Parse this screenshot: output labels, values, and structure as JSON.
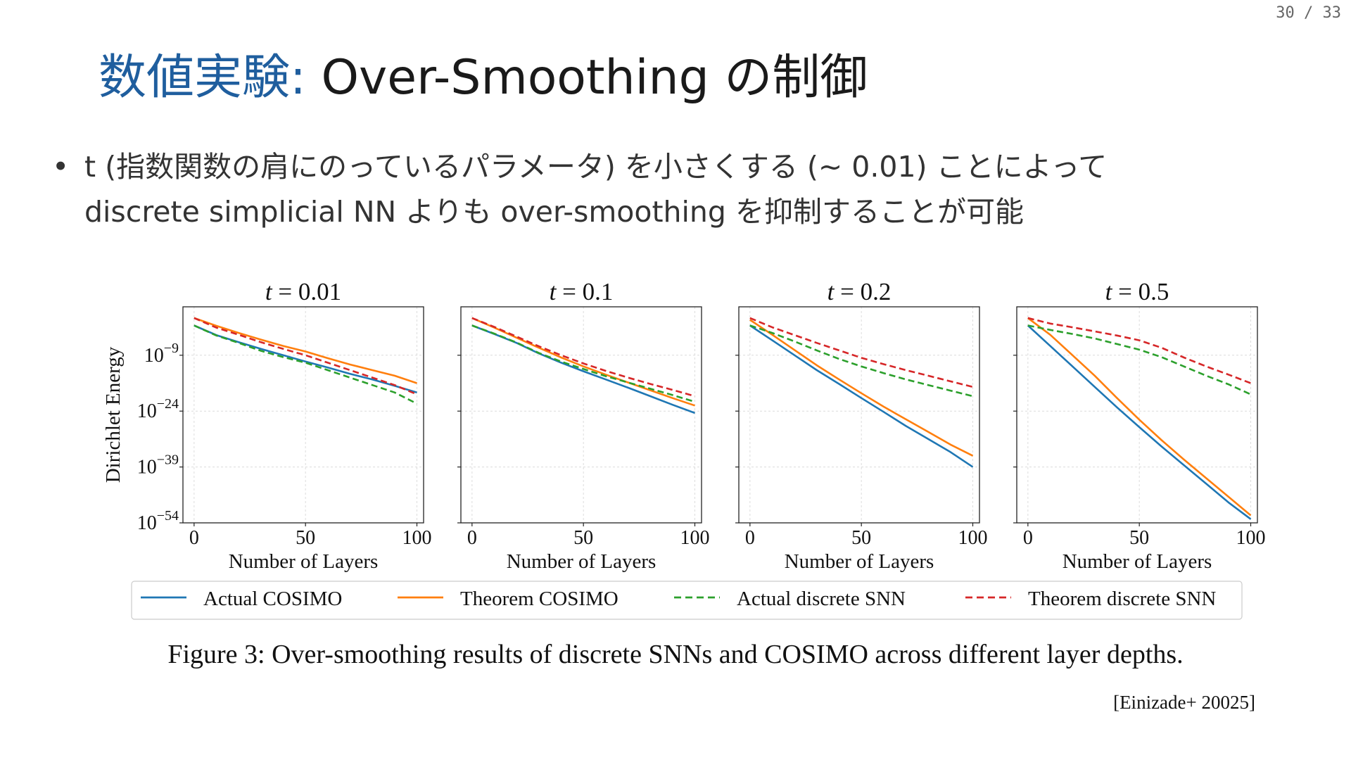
{
  "page": {
    "current": "30",
    "total": "33",
    "separator": "/"
  },
  "title": {
    "accent": "数値実験:",
    "main": " Over-Smoothing の制御"
  },
  "bullet": {
    "marker": "•",
    "line1": "t (指数関数の肩にのっているパラメータ) を小さくする (∼ 0.01) ことによって",
    "line2": "discrete simplicial NN よりも over-smoothing を抑制することが可能"
  },
  "caption": "Figure 3: Over-smoothing results of discrete SNNs and COSIMO across different layer depths.",
  "citation": "[Einizade+ 20025]",
  "colors": {
    "actual_cosimo": "#1f77b4",
    "theorem_cosimo": "#ff7f0e",
    "actual_snn": "#2ca02c",
    "theorem_snn": "#d62728",
    "title_accent": "#1f5e9e"
  },
  "chart_data": {
    "type": "line",
    "xlabel": "Number of Layers",
    "ylabel": "Dirichlet Energy",
    "yscale": "log",
    "xlim": [
      -5,
      103
    ],
    "ylim_exp": [
      -54,
      4
    ],
    "xticks": [
      "0",
      "50",
      "100"
    ],
    "yticks": [
      {
        "base": "10",
        "exp": "−9",
        "value_exp": -9
      },
      {
        "base": "10",
        "exp": "−24",
        "value_exp": -24
      },
      {
        "base": "10",
        "exp": "−39",
        "value_exp": -39
      },
      {
        "base": "10",
        "exp": "−54",
        "value_exp": -54
      }
    ],
    "grid": true,
    "legend": {
      "position": "bottom",
      "entries": [
        "Actual COSIMO",
        "Theorem COSIMO",
        "Actual discrete SNN",
        "Theorem discrete SNN"
      ]
    },
    "panels": [
      {
        "title_var": "t",
        "title_eq": " = ",
        "title_val": "0.01",
        "x": [
          0,
          10,
          20,
          30,
          40,
          50,
          60,
          70,
          80,
          90,
          100
        ],
        "series": [
          {
            "name": "Actual COSIMO",
            "style": "solid",
            "color_key": "actual_cosimo",
            "log10_values": [
              -1,
              -3.6,
              -5.5,
              -7.3,
              -9,
              -10.7,
              -12.3,
              -14,
              -15.5,
              -17.2,
              -19
            ]
          },
          {
            "name": "Theorem COSIMO",
            "style": "solid",
            "color_key": "theorem_cosimo",
            "log10_values": [
              1,
              -1.1,
              -3,
              -4.8,
              -6.5,
              -8,
              -9.8,
              -11.5,
              -13,
              -14.5,
              -16.5
            ]
          },
          {
            "name": "Actual discrete SNN",
            "style": "dashed",
            "color_key": "actual_snn",
            "log10_values": [
              -1,
              -3.7,
              -5.7,
              -7.8,
              -9.5,
              -11,
              -13,
              -15,
              -17,
              -19,
              -22
            ]
          },
          {
            "name": "Theorem discrete SNN",
            "style": "dashed",
            "color_key": "theorem_snn",
            "log10_values": [
              1,
              -1.6,
              -3.5,
              -5.5,
              -7.3,
              -9,
              -11,
              -13,
              -15,
              -17,
              -19.5
            ]
          }
        ]
      },
      {
        "title_var": "t",
        "title_eq": " = ",
        "title_val": "0.1",
        "x": [
          0,
          10,
          20,
          30,
          40,
          50,
          60,
          70,
          80,
          90,
          100
        ],
        "series": [
          {
            "name": "Actual COSIMO",
            "style": "solid",
            "color_key": "actual_cosimo",
            "log10_values": [
              -1,
              -3.3,
              -5.7,
              -8.5,
              -11,
              -13.3,
              -15.5,
              -17.7,
              -20,
              -22.3,
              -24.5
            ]
          },
          {
            "name": "Theorem COSIMO",
            "style": "solid",
            "color_key": "theorem_cosimo",
            "log10_values": [
              1,
              -1.6,
              -4.3,
              -7,
              -9.6,
              -12,
              -14.2,
              -16.3,
              -18.4,
              -20.5,
              -22.5
            ]
          },
          {
            "name": "Actual discrete SNN",
            "style": "dashed",
            "color_key": "actual_snn",
            "log10_values": [
              -1,
              -3.2,
              -5.6,
              -8.4,
              -10.7,
              -12.7,
              -14.6,
              -16.3,
              -18,
              -19.7,
              -21.5
            ]
          },
          {
            "name": "Theorem discrete SNN",
            "style": "dashed",
            "color_key": "theorem_snn",
            "log10_values": [
              1,
              -1.4,
              -4,
              -6.6,
              -9,
              -11.2,
              -13.2,
              -15,
              -16.7,
              -18.3,
              -20
            ]
          }
        ]
      },
      {
        "title_var": "t",
        "title_eq": " = ",
        "title_val": "0.2",
        "x": [
          0,
          10,
          20,
          30,
          40,
          50,
          60,
          70,
          80,
          90,
          100
        ],
        "series": [
          {
            "name": "Actual COSIMO",
            "style": "solid",
            "color_key": "actual_cosimo",
            "log10_values": [
              -1,
              -5,
              -9,
              -13,
              -16.7,
              -20.5,
              -24.2,
              -28,
              -31.5,
              -35,
              -39
            ]
          },
          {
            "name": "Theorem COSIMO",
            "style": "solid",
            "color_key": "theorem_cosimo",
            "log10_values": [
              0.5,
              -3.5,
              -7.6,
              -11.7,
              -15.5,
              -19.2,
              -22.8,
              -26.2,
              -29.6,
              -33,
              -36
            ]
          },
          {
            "name": "Actual discrete SNN",
            "style": "dashed",
            "color_key": "actual_snn",
            "log10_values": [
              -1,
              -3,
              -5.3,
              -7.7,
              -10,
              -12,
              -13.8,
              -15.5,
              -17,
              -18.5,
              -20
            ]
          },
          {
            "name": "Theorem discrete SNN",
            "style": "dashed",
            "color_key": "theorem_snn",
            "log10_values": [
              1,
              -1.5,
              -3.6,
              -5.7,
              -7.7,
              -9.7,
              -11.4,
              -13,
              -14.5,
              -16,
              -17.5
            ]
          }
        ]
      },
      {
        "title_var": "t",
        "title_eq": " = ",
        "title_val": "0.5",
        "x": [
          0,
          10,
          20,
          30,
          40,
          50,
          60,
          70,
          80,
          90,
          100
        ],
        "series": [
          {
            "name": "Actual COSIMO",
            "style": "solid",
            "color_key": "actual_cosimo",
            "log10_values": [
              -1,
              -6.5,
              -12,
              -17.5,
              -23,
              -28.3,
              -33.5,
              -38.5,
              -43.5,
              -48.5,
              -53
            ]
          },
          {
            "name": "Theorem COSIMO",
            "style": "solid",
            "color_key": "theorem_cosimo",
            "log10_values": [
              1,
              -3.5,
              -9,
              -14.5,
              -20.5,
              -26.3,
              -31.8,
              -37,
              -42,
              -47,
              -52
            ]
          },
          {
            "name": "Actual discrete SNN",
            "style": "dashed",
            "color_key": "actual_snn",
            "log10_values": [
              -1,
              -2.2,
              -3.3,
              -4.5,
              -6,
              -7.5,
              -9.5,
              -12,
              -14.5,
              -16.8,
              -19.5
            ]
          },
          {
            "name": "Theorem discrete SNN",
            "style": "dashed",
            "color_key": "theorem_snn",
            "log10_values": [
              1,
              -0.5,
              -1.5,
              -2.6,
              -3.7,
              -5,
              -7,
              -9.6,
              -12,
              -14.2,
              -16.5
            ]
          }
        ]
      }
    ]
  }
}
